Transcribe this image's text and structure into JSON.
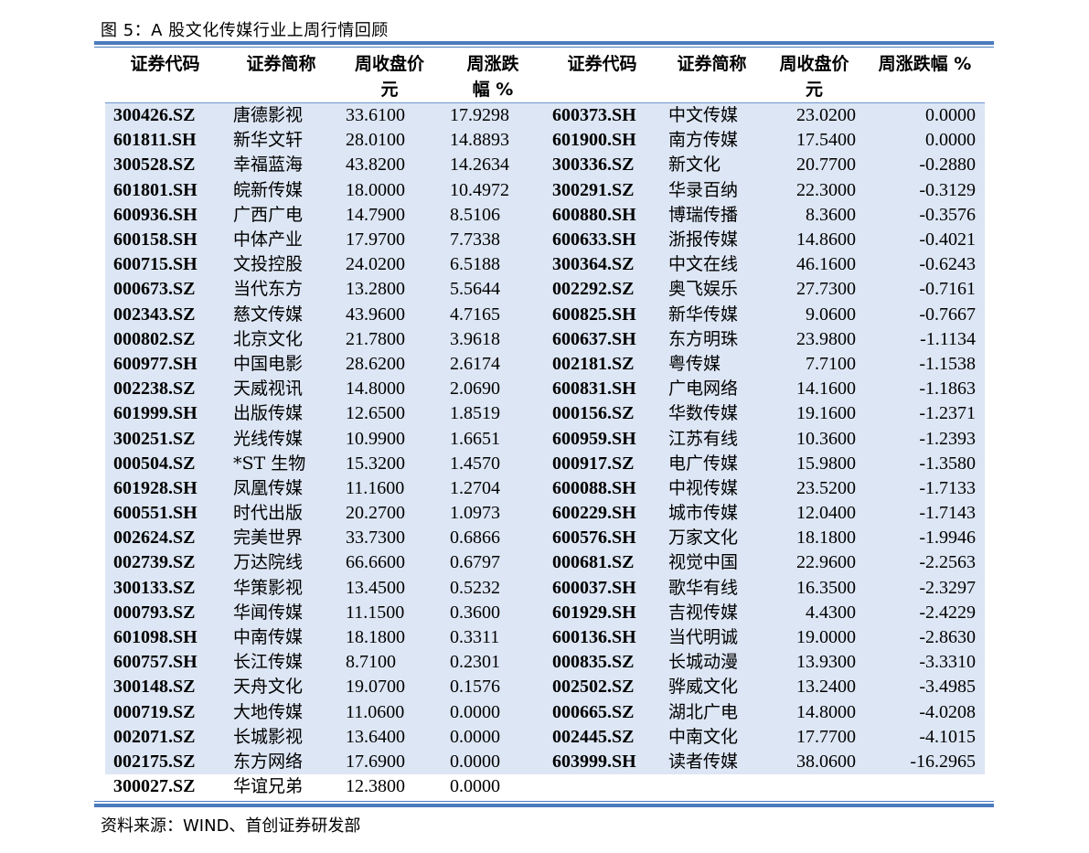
{
  "figure_title": "图 5：A 股文化传媒行业上周行情回顾",
  "source_note": "资料来源：WIND、首创证券研发部",
  "headers": [
    "证券代码",
    "证券简称",
    "周收盘价\n元",
    "周涨跌\n幅 %",
    "证券代码",
    "证券简称",
    "周收盘价\n元",
    "周涨跌幅 %"
  ],
  "rows": [
    [
      "300426.SZ",
      "唐德影视",
      "33.6100",
      "17.9298",
      "600373.SH",
      "中文传媒",
      "23.0200",
      "0.0000"
    ],
    [
      "601811.SH",
      "新华文轩",
      "28.0100",
      "14.8893",
      "601900.SH",
      "南方传媒",
      "17.5400",
      "0.0000"
    ],
    [
      "300528.SZ",
      "幸福蓝海",
      "43.8200",
      "14.2634",
      "300336.SZ",
      "新文化",
      "20.7700",
      "-0.2880"
    ],
    [
      "601801.SH",
      "皖新传媒",
      "18.0000",
      "10.4972",
      "300291.SZ",
      "华录百纳",
      "22.3000",
      "-0.3129"
    ],
    [
      "600936.SH",
      "广西广电",
      "14.7900",
      "8.5106",
      "600880.SH",
      "博瑞传播",
      "8.3600",
      "-0.3576"
    ],
    [
      "600158.SH",
      "中体产业",
      "17.9700",
      "7.7338",
      "600633.SH",
      "浙报传媒",
      "14.8600",
      "-0.4021"
    ],
    [
      "600715.SH",
      "文投控股",
      "24.0200",
      "6.5188",
      "300364.SZ",
      "中文在线",
      "46.1600",
      "-0.6243"
    ],
    [
      "000673.SZ",
      "当代东方",
      "13.2800",
      "5.5644",
      "002292.SZ",
      "奥飞娱乐",
      "27.7300",
      "-0.7161"
    ],
    [
      "002343.SZ",
      "慈文传媒",
      "43.9600",
      "4.7165",
      "600825.SH",
      "新华传媒",
      "9.0600",
      "-0.7667"
    ],
    [
      "000802.SZ",
      "北京文化",
      "21.7800",
      "3.9618",
      "600637.SH",
      "东方明珠",
      "23.9800",
      "-1.1134"
    ],
    [
      "600977.SH",
      "中国电影",
      "28.6200",
      "2.6174",
      "002181.SZ",
      "粤传媒",
      "7.7100",
      "-1.1538"
    ],
    [
      "002238.SZ",
      "天威视讯",
      "14.8000",
      "2.0690",
      "600831.SH",
      "广电网络",
      "14.1600",
      "-1.1863"
    ],
    [
      "601999.SH",
      "出版传媒",
      "12.6500",
      "1.8519",
      "000156.SZ",
      "华数传媒",
      "19.1600",
      "-1.2371"
    ],
    [
      "300251.SZ",
      "光线传媒",
      "10.9900",
      "1.6651",
      "600959.SH",
      "江苏有线",
      "10.3600",
      "-1.2393"
    ],
    [
      "000504.SZ",
      "*ST 生物",
      "15.3200",
      "1.4570",
      "000917.SZ",
      "电广传媒",
      "15.9800",
      "-1.3580"
    ],
    [
      "601928.SH",
      "凤凰传媒",
      "11.1600",
      "1.2704",
      "600088.SH",
      "中视传媒",
      "23.5200",
      "-1.7133"
    ],
    [
      "600551.SH",
      "时代出版",
      "20.2700",
      "1.0973",
      "600229.SH",
      "城市传媒",
      "12.0400",
      "-1.7143"
    ],
    [
      "002624.SZ",
      "完美世界",
      "33.7300",
      "0.6866",
      "600576.SH",
      "万家文化",
      "18.1800",
      "-1.9946"
    ],
    [
      "002739.SZ",
      "万达院线",
      "66.6600",
      "0.6797",
      "000681.SZ",
      "视觉中国",
      "22.9600",
      "-2.2563"
    ],
    [
      "300133.SZ",
      "华策影视",
      "13.4500",
      "0.5232",
      "600037.SH",
      "歌华有线",
      "16.3500",
      "-2.3297"
    ],
    [
      "000793.SZ",
      "华闻传媒",
      "11.1500",
      "0.3600",
      "601929.SH",
      "吉视传媒",
      "4.4300",
      "-2.4229"
    ],
    [
      "601098.SH",
      "中南传媒",
      "18.1800",
      "0.3311",
      "600136.SH",
      "当代明诚",
      "19.0000",
      "-2.8630"
    ],
    [
      "600757.SH",
      "长江传媒",
      "8.7100",
      "0.2301",
      "000835.SZ",
      "长城动漫",
      "13.9300",
      "-3.3310"
    ],
    [
      "300148.SZ",
      "天舟文化",
      "19.0700",
      "0.1576",
      "002502.SZ",
      "骅威文化",
      "13.2400",
      "-3.4985"
    ],
    [
      "000719.SZ",
      "大地传媒",
      "11.0600",
      "0.0000",
      "000665.SZ",
      "湖北广电",
      "14.8000",
      "-4.0208"
    ],
    [
      "002071.SZ",
      "长城影视",
      "13.6400",
      "0.0000",
      "002445.SZ",
      "中南文化",
      "17.7700",
      "-4.1015"
    ],
    [
      "002175.SZ",
      "东方网络",
      "17.6900",
      "0.0000",
      "603999.SH",
      "读者传媒",
      "38.0600",
      "-16.2965"
    ],
    [
      "300027.SZ",
      "华谊兄弟",
      "12.3800",
      "0.0000",
      "",
      "",
      "",
      ""
    ]
  ],
  "colors": {
    "rule": "#4a7bbd",
    "row_shade": "#dde6f4"
  }
}
